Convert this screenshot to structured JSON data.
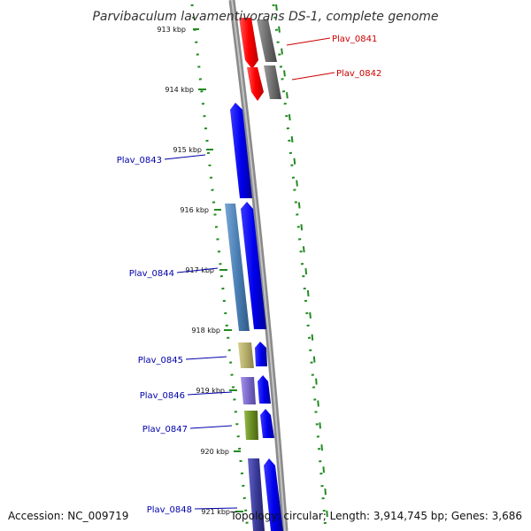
{
  "title": "Parvibaculum lavamentivorans DS-1, complete genome",
  "accession": "Accession: NC_009719",
  "topology": "Topology: circular; Length: 3,914,745 bp; Genes: 3,686",
  "ticks": [
    "913 kbp",
    "914 kbp",
    "915 kbp",
    "916 kbp",
    "917 kbp",
    "918 kbp",
    "919 kbp",
    "920 kbp",
    "921 kbp"
  ],
  "genes": [
    {
      "name": "Plav_0841",
      "strand": "reverse",
      "color": "#ff0000",
      "label_color": "#cc0000"
    },
    {
      "name": "Plav_0842",
      "strand": "reverse",
      "color": "#ff0000",
      "label_color": "#cc0000"
    },
    {
      "name": "Plav_0843",
      "strand": "forward",
      "color": "#0000ee",
      "label_color": "#0000aa"
    },
    {
      "name": "Plav_0844",
      "strand": "forward",
      "color": "#0000ee",
      "label_color": "#0000aa"
    },
    {
      "name": "Plav_0845",
      "strand": "forward",
      "color": "#0000ee",
      "label_color": "#0000aa"
    },
    {
      "name": "Plav_0846",
      "strand": "forward",
      "color": "#0000ee",
      "label_color": "#0000aa"
    },
    {
      "name": "Plav_0847",
      "strand": "forward",
      "color": "#0000ee",
      "label_color": "#0000aa"
    },
    {
      "name": "Plav_0848",
      "strand": "forward",
      "color": "#0000ee",
      "label_color": "#0000aa"
    }
  ],
  "colors": {
    "backbone": "#8a8a8a",
    "gc_dots": "#228b22",
    "cog_gray": "#6e6e6e",
    "cog_steelblue": "#4a7fb5",
    "cog_khaki": "#b5ad6a",
    "cog_purple": "#7b68c9",
    "cog_olive": "#6b8e23",
    "cog_indigo": "#3a3a9a"
  }
}
